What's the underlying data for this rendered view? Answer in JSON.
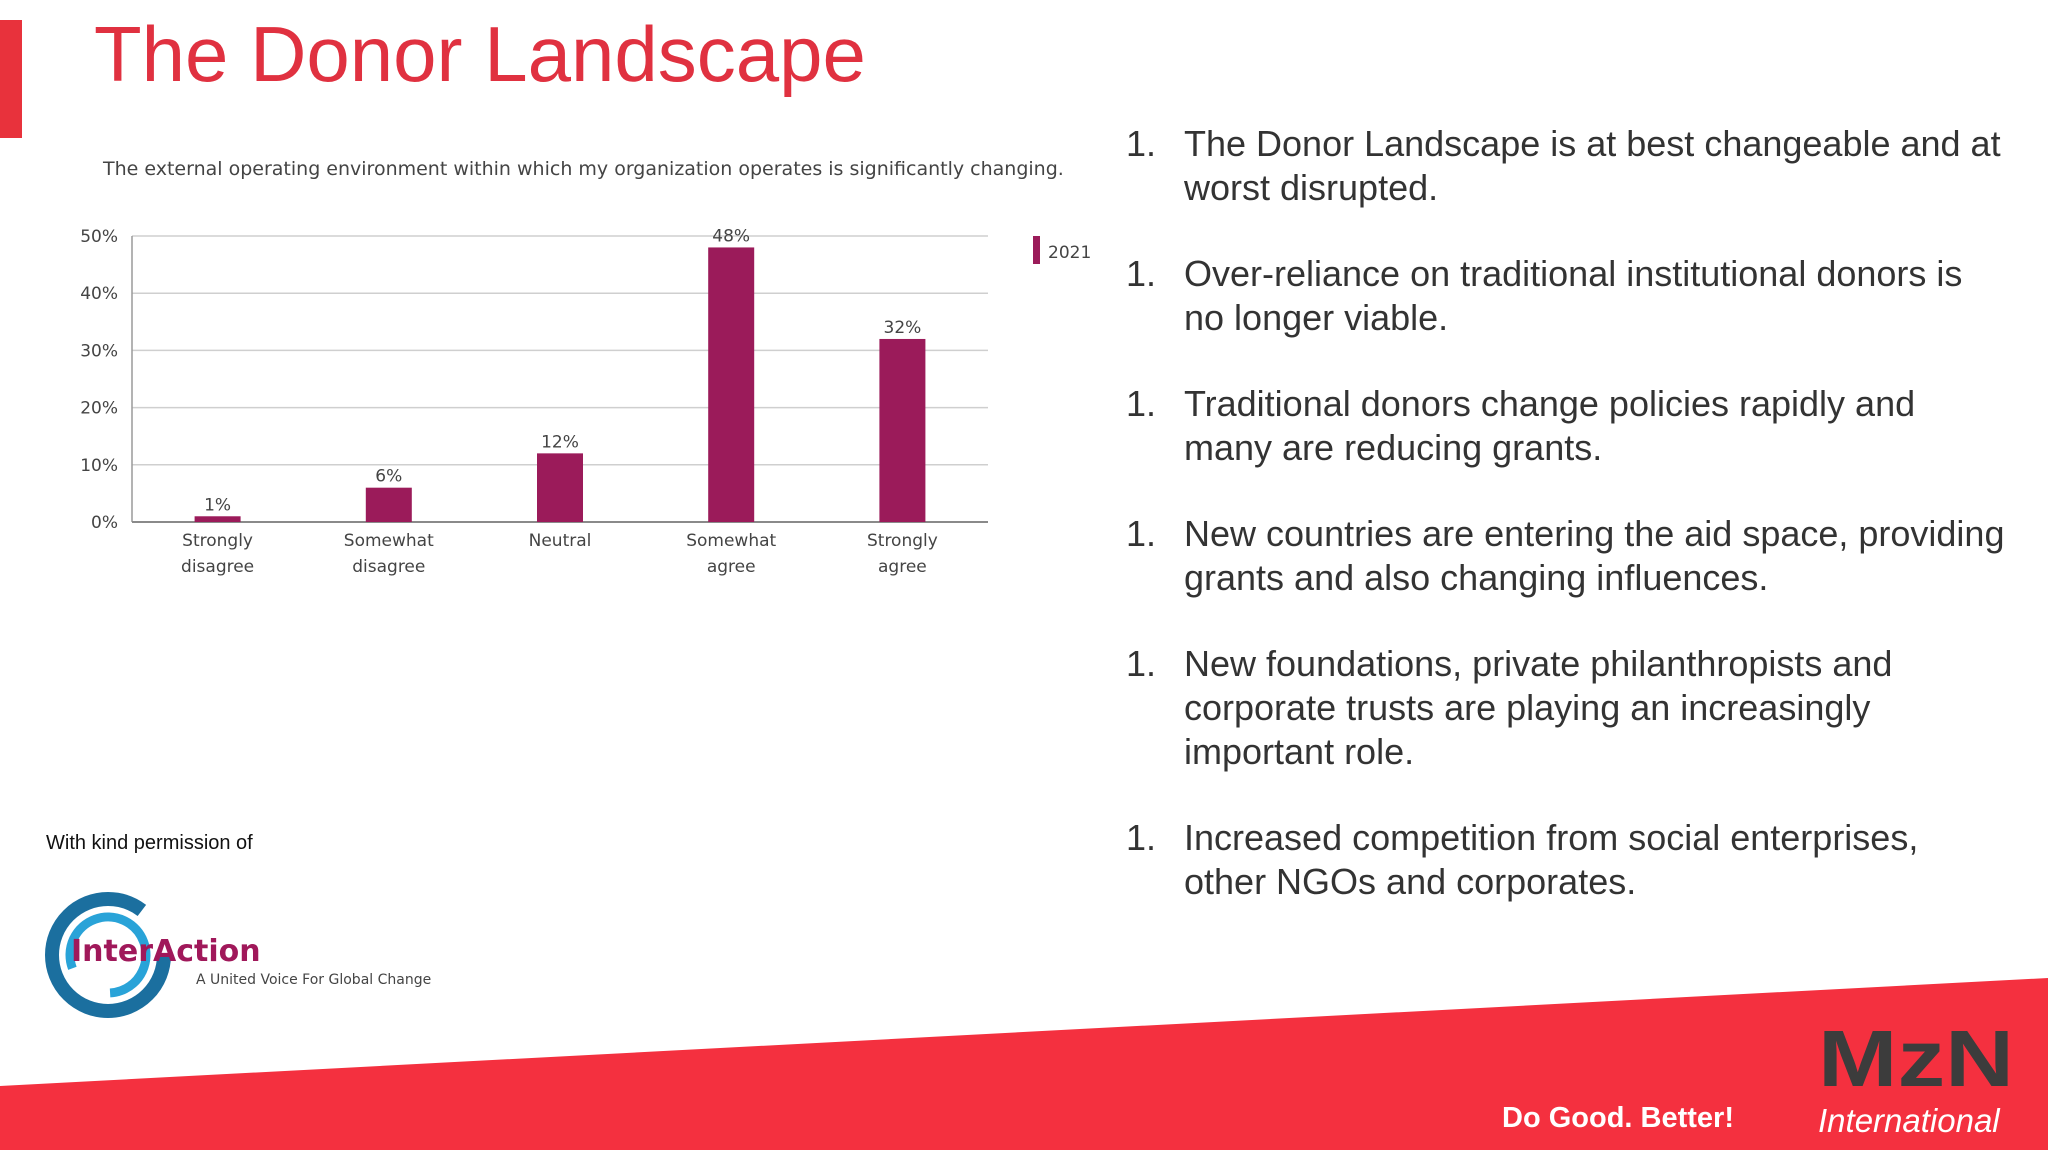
{
  "slide": {
    "title": "The Donor Landscape",
    "accent_color": "#e8323c"
  },
  "chart_data": {
    "type": "bar",
    "title": "The external operating environment within which my organization operates is significantly changing.",
    "categories": [
      [
        "Strongly",
        "disagree"
      ],
      [
        "Somewhat",
        "disagree"
      ],
      [
        "Neutral"
      ],
      [
        "Somewhat",
        "agree"
      ],
      [
        "Strongly",
        "agree"
      ]
    ],
    "series": [
      {
        "name": "2021",
        "color": "#9b1b5a",
        "values": [
          1,
          6,
          12,
          48,
          32
        ],
        "labels": [
          "1%",
          "6%",
          "12%",
          "48%",
          "32%"
        ]
      }
    ],
    "yticks": [
      "0%",
      "10%",
      "20%",
      "30%",
      "40%",
      "50%"
    ],
    "ylim": [
      0,
      50
    ],
    "grid": true,
    "legend_position": "top-right"
  },
  "points": [
    {
      "num": "1.",
      "lines": [
        "The Donor Landscape is at best changeable and at",
        "worst disrupted."
      ]
    },
    {
      "num": "1.",
      "lines": [
        "Over-reliance on traditional institutional donors is",
        "no longer viable."
      ]
    },
    {
      "num": "1.",
      "lines": [
        "Traditional donors change policies rapidly and",
        "many are reducing grants."
      ]
    },
    {
      "num": "1.",
      "lines": [
        "New countries are entering the aid space, providing",
        "grants and also changing influences."
      ]
    },
    {
      "num": "1.",
      "lines": [
        "New foundations, private philanthropists and",
        "corporate trusts are playing an increasingly",
        "important role."
      ]
    },
    {
      "num": "1.",
      "lines": [
        "Increased competition from social enterprises,",
        "other NGOs and corporates."
      ]
    }
  ],
  "permission": {
    "text": "With kind permission of"
  },
  "logo": {
    "name": "InterAction",
    "tagline": "A United Voice For Global Change",
    "icon": "interaction-ring-icon"
  },
  "footer": {
    "tagline": "Do Good. Better!",
    "brand": "MzN",
    "brand_sub": "International",
    "band_color": "#f4303f"
  }
}
